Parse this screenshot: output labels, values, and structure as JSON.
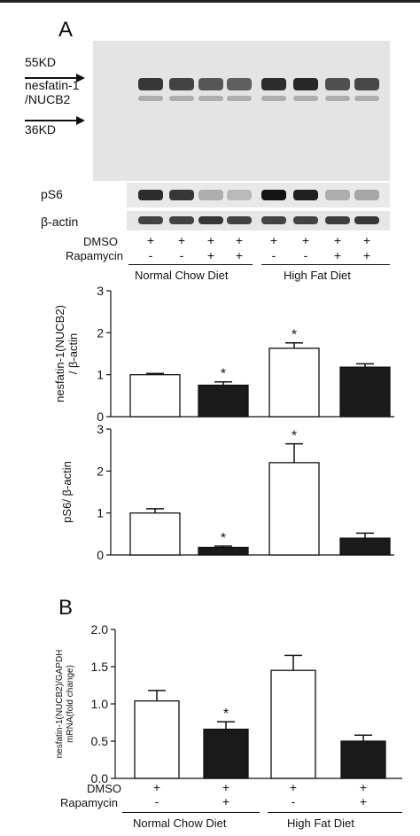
{
  "panel_a": {
    "letter": "A",
    "marker_high": "55KD",
    "marker_low": "36KD",
    "blot_label_main_line1": "nesfatin-1",
    "blot_label_main_line2": "/NUCB2",
    "blot_label_ps6": "pS6",
    "blot_label_actin": "β-actin",
    "dmso_label": "DMSO",
    "rapamycin_label": "Rapamycin",
    "dmso_signs": [
      "+",
      "+",
      "+",
      "+",
      "+",
      "+",
      "+",
      "+"
    ],
    "rapamycin_signs": [
      "-",
      "-",
      "+",
      "+",
      "-",
      "-",
      "+",
      "+"
    ],
    "group_left": "Normal Chow Diet",
    "group_right": "High Fat Diet",
    "blot_intensity": {
      "nucb2": [
        0.85,
        0.8,
        0.72,
        0.68,
        0.9,
        0.92,
        0.75,
        0.78
      ],
      "ps6": [
        0.9,
        0.85,
        0.35,
        0.3,
        1.0,
        0.95,
        0.35,
        0.38
      ],
      "actin": [
        0.8,
        0.8,
        0.85,
        0.8,
        0.8,
        0.8,
        0.82,
        0.85
      ]
    }
  },
  "panel_b": {
    "letter": "B",
    "dmso_label": "DMSO",
    "rapamycin_label": "Rapamycin",
    "dmso_signs": [
      "+",
      "+",
      "+",
      "+"
    ],
    "rapamycin_signs": [
      "-",
      "+",
      "-",
      "+"
    ],
    "group_left": "Normal Chow Diet",
    "group_right": "High Fat Diet"
  },
  "chart_data": [
    {
      "type": "bar",
      "categories": [
        "NCD DMSO",
        "NCD Rapamycin",
        "HFD DMSO",
        "HFD Rapamycin"
      ],
      "values": [
        1.0,
        0.75,
        1.63,
        1.18
      ],
      "errors": [
        0.03,
        0.08,
        0.13,
        0.08
      ],
      "significant": [
        false,
        true,
        true,
        false
      ],
      "bar_colors": [
        "#ffffff",
        "#1a1a1a",
        "#ffffff",
        "#1a1a1a"
      ],
      "ylabel": "nesfatin-1(NUCB2)\n/ β-actin",
      "ylim": [
        0,
        3
      ],
      "yticks": [
        "0",
        "1",
        "2",
        "3"
      ],
      "xlabel": ""
    },
    {
      "type": "bar",
      "categories": [
        "NCD DMSO",
        "NCD Rapamycin",
        "HFD DMSO",
        "HFD Rapamycin"
      ],
      "values": [
        1.0,
        0.18,
        2.2,
        0.4
      ],
      "errors": [
        0.1,
        0.03,
        0.45,
        0.12
      ],
      "significant": [
        false,
        true,
        true,
        false
      ],
      "bar_colors": [
        "#ffffff",
        "#1a1a1a",
        "#ffffff",
        "#1a1a1a"
      ],
      "ylabel": "pS6/ β-actin",
      "ylim": [
        0,
        3
      ],
      "yticks": [
        "0",
        "1",
        "2",
        "3"
      ],
      "xlabel": ""
    },
    {
      "type": "bar",
      "categories": [
        "NCD DMSO",
        "NCD Rapamycin",
        "HFD DMSO",
        "HFD Rapamycin"
      ],
      "values": [
        1.04,
        0.66,
        1.45,
        0.5
      ],
      "errors": [
        0.14,
        0.1,
        0.2,
        0.08
      ],
      "significant": [
        false,
        true,
        false,
        false
      ],
      "bar_colors": [
        "#ffffff",
        "#1a1a1a",
        "#ffffff",
        "#1a1a1a"
      ],
      "ylabel": "nesfatin-1(NUCB2)/GAPDH\nmRNA(fold change)",
      "ylim": [
        0,
        2
      ],
      "yticks": [
        "0.0",
        "0.5",
        "1.0",
        "1.5",
        "2.0"
      ],
      "xlabel": ""
    }
  ]
}
